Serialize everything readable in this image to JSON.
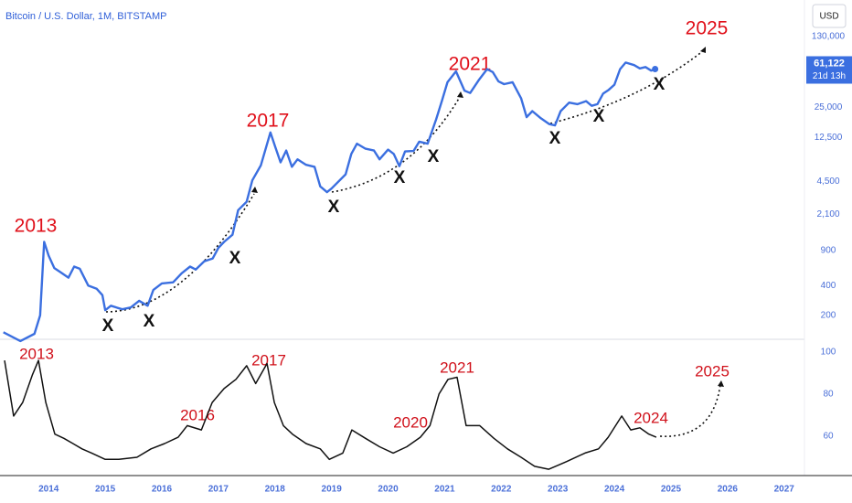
{
  "chart_data": [
    {
      "type": "line",
      "title": "Bitcoin / U.S. Dollar, 1M, BITSTAMP",
      "currency": "USD",
      "log_scale": true,
      "grid": false,
      "xlim": [
        2013.14,
        2027.36
      ],
      "ylim": [
        117,
        304000
      ],
      "yticks": [
        200,
        400,
        900,
        {
          "value": 2100,
          "label": "2,100"
        },
        {
          "value": 4500,
          "label": "4,500"
        },
        {
          "value": 12500,
          "label": "12,500"
        },
        {
          "value": 25000,
          "label": "25,000"
        },
        {
          "value": 130000,
          "label": "130,000"
        }
      ],
      "last_label": "61,122",
      "countdown": "21d 13h",
      "annotations": [
        "2013",
        "2017",
        "2021",
        "2025",
        "X",
        "X",
        "X",
        "X",
        "X",
        "X",
        "X",
        "X",
        "X"
      ],
      "series": [
        {
          "color": "#3b6fe0",
          "x": [
            2013.2,
            2013.5,
            2013.75,
            2013.85,
            2013.92,
            2014.0,
            2014.1,
            2014.2,
            2014.35,
            2014.45,
            2014.55,
            2014.7,
            2014.85,
            2014.95,
            2015.0,
            2015.1,
            2015.3,
            2015.45,
            2015.6,
            2015.75,
            2015.85,
            2016.0,
            2016.2,
            2016.35,
            2016.5,
            2016.6,
            2016.75,
            2016.9,
            2017.0,
            2017.1,
            2017.25,
            2017.35,
            2017.5,
            2017.6,
            2017.75,
            2017.92,
            2018.0,
            2018.1,
            2018.2,
            2018.3,
            2018.4,
            2018.55,
            2018.7,
            2018.8,
            2018.92,
            2019.0,
            2019.25,
            2019.35,
            2019.45,
            2019.6,
            2019.75,
            2019.85,
            2020.0,
            2020.1,
            2020.2,
            2020.3,
            2020.45,
            2020.55,
            2020.7,
            2020.85,
            2020.95,
            2021.05,
            2021.2,
            2021.35,
            2021.45,
            2021.6,
            2021.75,
            2021.85,
            2021.95,
            2022.05,
            2022.2,
            2022.35,
            2022.45,
            2022.55,
            2022.7,
            2022.85,
            2022.95,
            2023.05,
            2023.2,
            2023.35,
            2023.5,
            2023.6,
            2023.7,
            2023.8,
            2023.9,
            2024.0,
            2024.1,
            2024.2,
            2024.35,
            2024.45,
            2024.55,
            2024.65,
            2024.72
          ],
          "values": [
            135,
            110,
            130,
            200,
            1100,
            800,
            600,
            550,
            480,
            620,
            590,
            400,
            370,
            320,
            225,
            250,
            230,
            240,
            280,
            250,
            360,
            420,
            430,
            530,
            620,
            580,
            700,
            750,
            960,
            1100,
            1300,
            2300,
            2800,
            4600,
            6500,
            14000,
            10200,
            7000,
            9200,
            6300,
            7500,
            6600,
            6300,
            4000,
            3500,
            3800,
            5300,
            8500,
            10800,
            9600,
            9200,
            7500,
            9400,
            8500,
            6400,
            9000,
            9100,
            11300,
            10800,
            19000,
            29000,
            45000,
            58000,
            37000,
            35000,
            47000,
            61000,
            57000,
            46000,
            43000,
            45000,
            31000,
            20000,
            23000,
            19500,
            17000,
            16500,
            23000,
            28000,
            27000,
            29000,
            26000,
            27000,
            34500,
            37700,
            42500,
            61000,
            71000,
            67000,
            62000,
            64000,
            59000,
            61122
          ]
        }
      ]
    },
    {
      "type": "line",
      "grid": false,
      "xlim": [
        2013.14,
        2027.36
      ],
      "ylim": [
        41.3,
        105.6
      ],
      "yticks": [
        60,
        80,
        100
      ],
      "xticks": [
        2014,
        2015,
        2016,
        2017,
        2018,
        2019,
        2020,
        2021,
        2022,
        2023,
        2024,
        2025,
        2026,
        2027
      ],
      "annotations": [
        "2013",
        "2016",
        "2017",
        "2020",
        "2021",
        "2024",
        "2025"
      ],
      "series": [
        {
          "color": "#111111",
          "x": [
            2013.22,
            2013.38,
            2013.54,
            2013.71,
            2013.82,
            2013.95,
            2014.11,
            2014.27,
            2014.43,
            2014.59,
            2014.76,
            2015.0,
            2015.24,
            2015.56,
            2015.81,
            2016.05,
            2016.29,
            2016.45,
            2016.7,
            2016.89,
            2017.1,
            2017.31,
            2017.5,
            2017.66,
            2017.86,
            2017.99,
            2018.15,
            2018.31,
            2018.55,
            2018.8,
            2018.96,
            2019.2,
            2019.36,
            2019.6,
            2019.85,
            2020.09,
            2020.33,
            2020.57,
            2020.74,
            2020.9,
            2021.06,
            2021.22,
            2021.38,
            2021.62,
            2021.87,
            2022.11,
            2022.35,
            2022.59,
            2022.84,
            2023.16,
            2023.48,
            2023.72,
            2023.89,
            2024.13,
            2024.29,
            2024.45,
            2024.61,
            2024.74
          ],
          "values": [
            96,
            69.6,
            76,
            89,
            96,
            76,
            61,
            59,
            56.5,
            54,
            52,
            49,
            49,
            50,
            54,
            56.5,
            59.5,
            65,
            63,
            76,
            82.6,
            87,
            93.5,
            85,
            94.5,
            76,
            65,
            61,
            56.5,
            54,
            49,
            52,
            63,
            59,
            55,
            52,
            55,
            59.5,
            65,
            80,
            87,
            88,
            65,
            65,
            59,
            54,
            50,
            45.7,
            44.3,
            48,
            52,
            54,
            59.5,
            69.6,
            63,
            64,
            61,
            59.5
          ]
        }
      ]
    }
  ]
}
